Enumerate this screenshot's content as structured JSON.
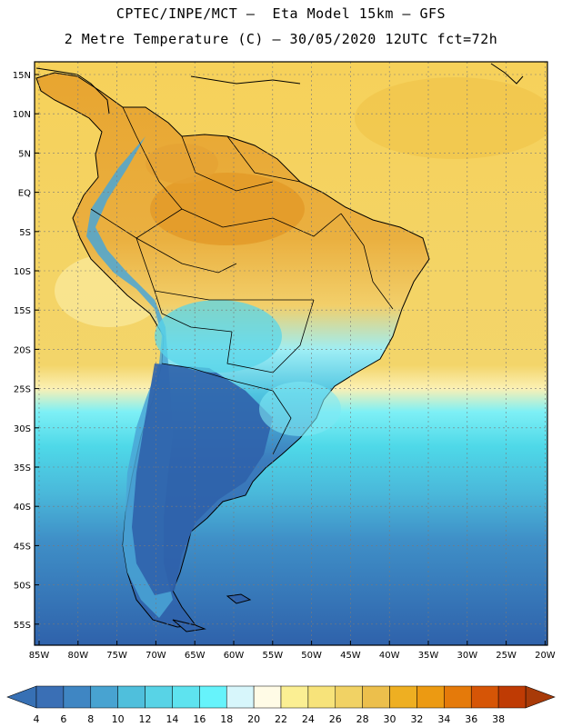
{
  "header": {
    "title_line1": "CPTEC/INPE/MCT –  Eta Model 15km – GFS",
    "title_line2": "2 Metre Temperature (C) – 30/05/2020 12UTC fct=72h"
  },
  "map": {
    "region": "South America",
    "lat_labels": [
      "15N",
      "10N",
      "5N",
      "EQ",
      "5S",
      "10S",
      "15S",
      "20S",
      "25S",
      "30S",
      "35S",
      "40S",
      "45S",
      "50S",
      "55S"
    ],
    "lon_labels": [
      "85W",
      "80W",
      "75W",
      "70W",
      "65W",
      "60W",
      "55W",
      "50W",
      "45W",
      "40W",
      "35W",
      "30W",
      "25W",
      "20W"
    ],
    "colors": {
      "ocean_warm": "#f2c94c",
      "land_hot": "#e8a02c",
      "cool_cyan": "#5ee9f2",
      "cold_blue": "#2f6eb3"
    }
  },
  "colorbar": {
    "labels": [
      "4",
      "6",
      "8",
      "10",
      "12",
      "14",
      "16",
      "18",
      "20",
      "22",
      "24",
      "26",
      "28",
      "30",
      "32",
      "34",
      "36",
      "38"
    ],
    "colors": [
      "#3a6fb5",
      "#3f86c3",
      "#48a3d1",
      "#4fbfdc",
      "#58d3e6",
      "#5ee3ef",
      "#66f3fb",
      "#d7f6fb",
      "#fffbe6",
      "#fbef93",
      "#f7e37a",
      "#f1d264",
      "#ecbf4c",
      "#eeaf22",
      "#ec9a12",
      "#e57a0a",
      "#d65506",
      "#bf3b04"
    ],
    "low_color": "#3770b4",
    "high_color": "#a83a08"
  }
}
